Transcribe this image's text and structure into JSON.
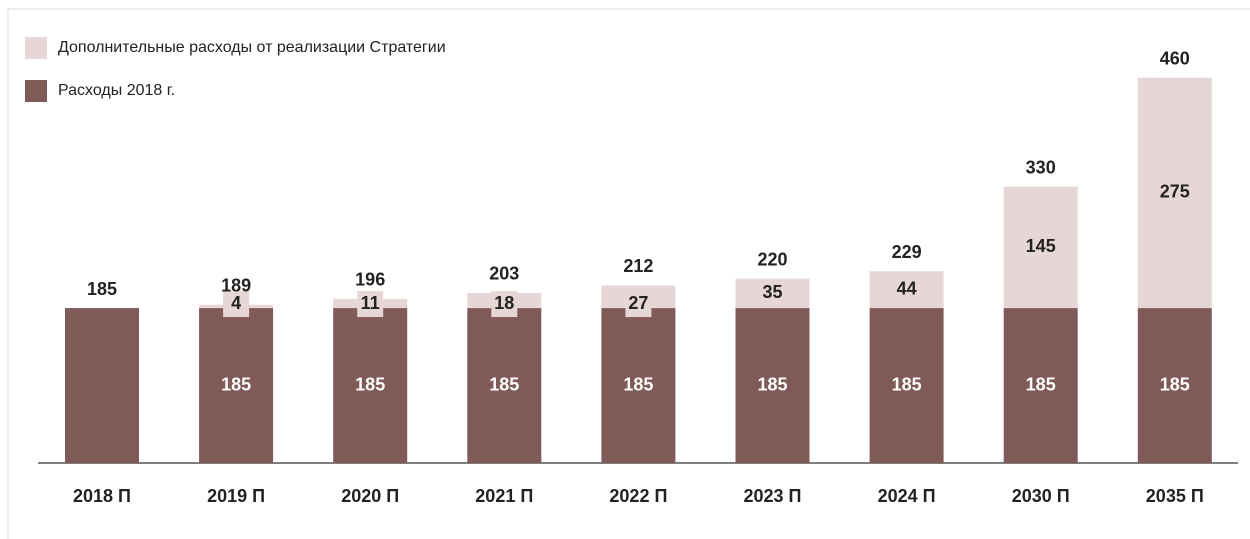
{
  "chart_data": {
    "type": "stacked_bar",
    "categories": [
      "2018 П",
      "2019 П",
      "2020 П",
      "2021 П",
      "2022 П",
      "2023 П",
      "2024 П",
      "2030 П",
      "2035 П"
    ],
    "series": [
      {
        "name": "Расходы 2018 г.",
        "color": "#7f5a57",
        "values": [
          185,
          185,
          185,
          185,
          185,
          185,
          185,
          185,
          185
        ]
      },
      {
        "name": "Дополнительные расходы от реализации Стратегии",
        "color": "#e6d6d5",
        "values": [
          null,
          4,
          11,
          18,
          27,
          35,
          44,
          145,
          275
        ]
      }
    ],
    "totals": [
      185,
      189,
      196,
      203,
      212,
      220,
      229,
      330,
      460
    ]
  }
}
